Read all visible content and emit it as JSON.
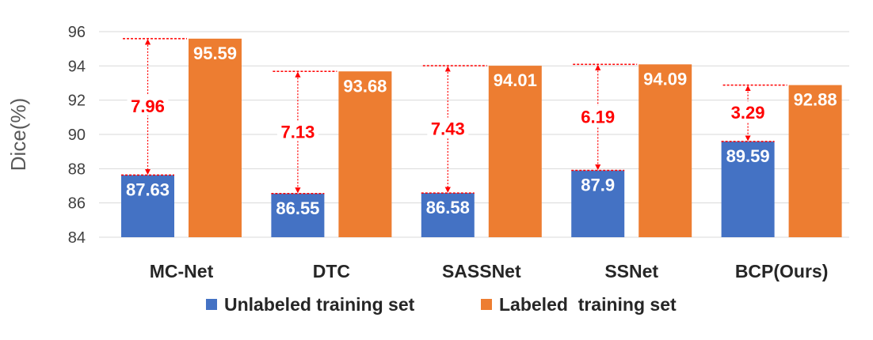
{
  "chart_data": {
    "type": "bar",
    "categories": [
      "MC-Net",
      "DTC",
      "SASSNet",
      "SSNet",
      "BCP(Ours)"
    ],
    "series": [
      {
        "name": "Unlabeled training set",
        "values": [
          87.63,
          86.55,
          86.58,
          87.9,
          89.59
        ],
        "labels": [
          "87.63",
          "86.55",
          "86.58",
          "87.9",
          "89.59"
        ],
        "color": "#4472c4"
      },
      {
        "name": "Labeled  training set",
        "values": [
          95.59,
          93.68,
          94.01,
          94.09,
          92.88
        ],
        "labels": [
          "95.59",
          "93.68",
          "94.01",
          "94.09",
          "92.88"
        ],
        "color": "#ed7d31"
      }
    ],
    "gaps": [
      "7.96",
      "7.13",
      "7.43",
      "6.19",
      "3.29"
    ],
    "gap_color": "#ff0000",
    "ylabel": "Dice(%)",
    "ylim": [
      84,
      96
    ],
    "yticks": [
      "84",
      "86",
      "88",
      "90",
      "92",
      "94",
      "96"
    ],
    "grid": true,
    "legend_position": "bottom"
  }
}
